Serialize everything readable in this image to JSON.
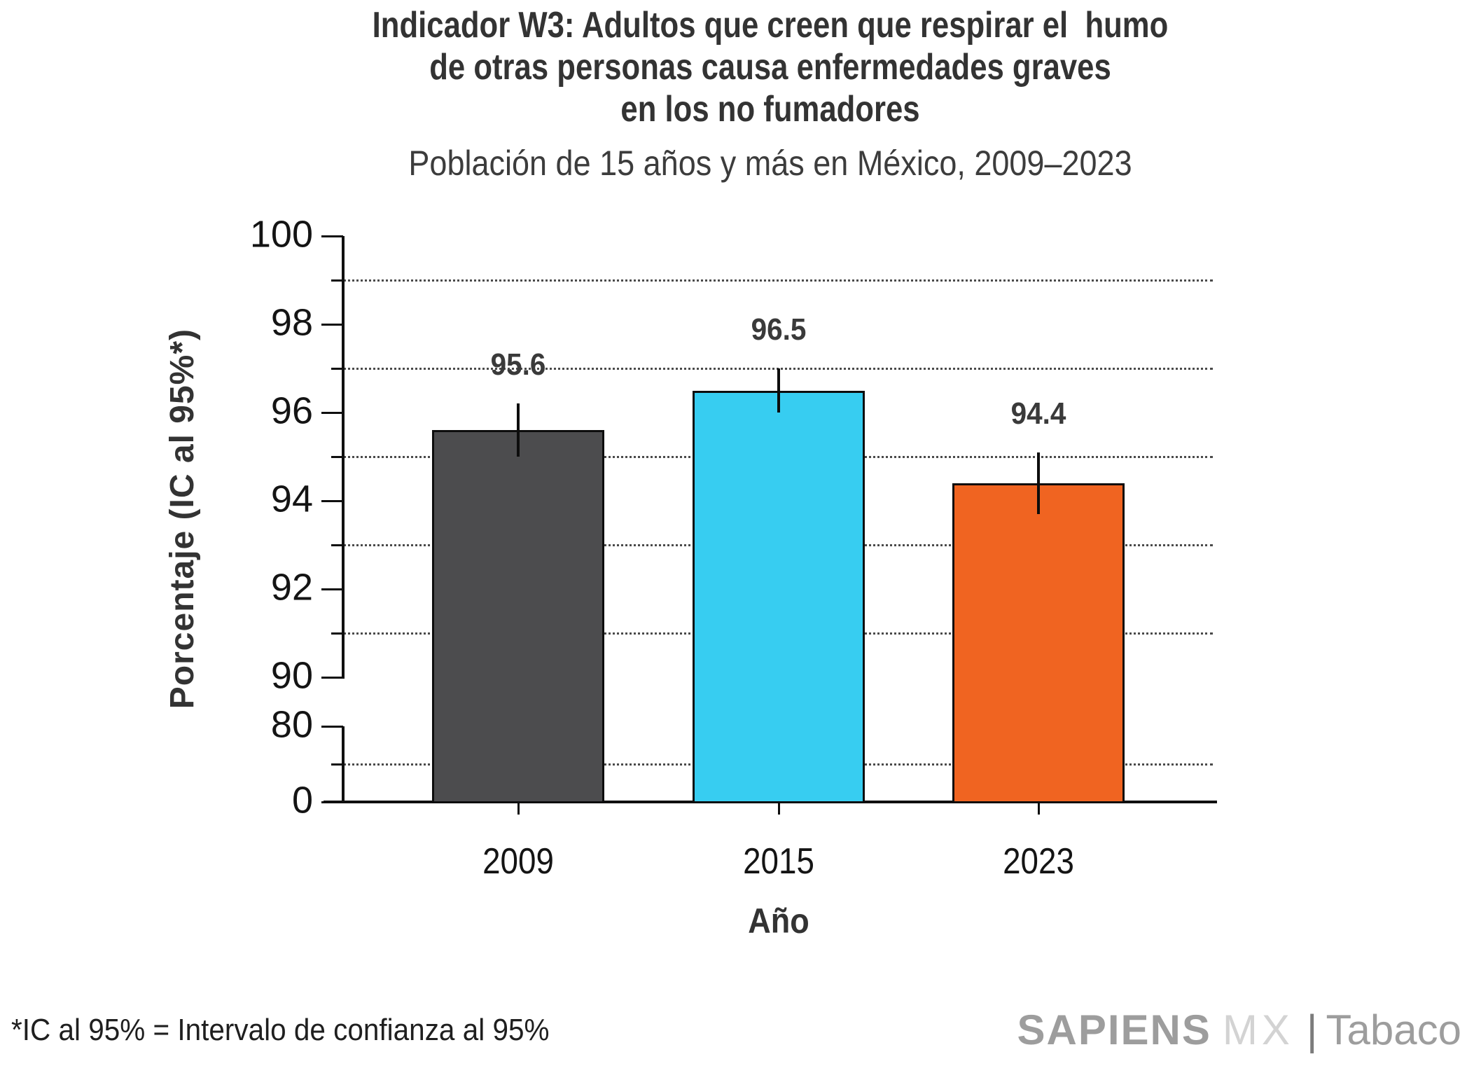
{
  "header": {
    "title_lines": [
      "Indicador W3: Adultos que creen que respirar el  humo",
      "de otras personas causa enfermedades graves",
      "en los no fumadores"
    ],
    "subtitle": "Población de 15 años y más en México, 2009–2023"
  },
  "chart_data": {
    "type": "bar",
    "title": "Indicador W3: Adultos que creen que respirar el humo de otras personas causa enfermedades graves en los no fumadores",
    "subtitle": "Población de 15 años y más en México, 2009–2023",
    "categories": [
      "2009",
      "2015",
      "2023"
    ],
    "values": [
      95.6,
      96.5,
      94.4
    ],
    "value_labels": [
      "95.6",
      "96.5",
      "94.4"
    ],
    "confidence_intervals": [
      [
        95.0,
        96.2
      ],
      [
        96.0,
        97.0
      ],
      [
        93.7,
        95.1
      ]
    ],
    "bar_colors": [
      "#4c4c4e",
      "#37cdf1",
      "#f06421"
    ],
    "xlabel": "Año",
    "ylabel": "Porcentaje (IC al 95%*)",
    "y_axis": {
      "major_ticks": [
        "100",
        "98",
        "96",
        "94",
        "92",
        "90",
        "80",
        "0"
      ],
      "minor_gridline_values": [
        99,
        97,
        95,
        93,
        91,
        40
      ],
      "broken_axis": true,
      "break_between": [
        90,
        80
      ],
      "top_segment_range": [
        90,
        100
      ]
    },
    "grid": "horizontal dotted lines at minor ticks",
    "legend": "none",
    "error_bars": "vertical lines without caps, 95% CI"
  },
  "footer": {
    "footnote": "*IC al 95% = Intervalo de confianza al 95%",
    "logo": {
      "brand": "SAPIENS",
      "brand2": "MX",
      "separator": "|",
      "product": "Tabaco"
    }
  },
  "colors": {
    "bar_2009": "#4c4c4e",
    "bar_2015": "#37cdf1",
    "bar_2023": "#f06421",
    "axis": "#0f0f0f",
    "title_text": "#333333",
    "gridline": "#4a4a4a",
    "logo_gray": "#9d9d9d",
    "logo_light_gray": "#d3d3d3"
  }
}
